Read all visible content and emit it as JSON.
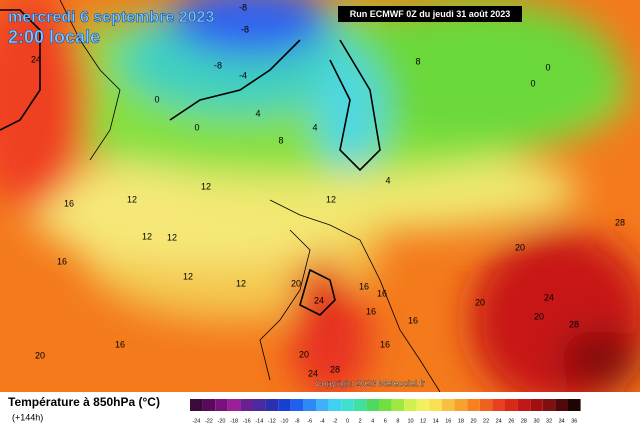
{
  "header": {
    "date": "mercredi 6 septembre 2023",
    "time": "2:00 locale",
    "run": "Run ECMWF 0Z du jeudi 31 août 2023"
  },
  "map": {
    "copyright": "Copyright 2023 Meteociel.fr",
    "contour_labels": [
      "-8",
      "-8",
      "-8",
      "-4",
      "0",
      "0",
      "4",
      "4",
      "8",
      "4",
      "8",
      "0",
      "0",
      "12",
      "12",
      "16",
      "12",
      "12",
      "12",
      "12",
      "12",
      "16",
      "16",
      "20",
      "20",
      "24",
      "16",
      "16",
      "16",
      "16",
      "20",
      "24",
      "20",
      "28",
      "28",
      "20",
      "24",
      "28",
      "16",
      "24",
      "20"
    ]
  },
  "legend": {
    "title": "Température à 850hPa (°C)",
    "lead": "(+144h)",
    "ticks": [
      -24,
      -22,
      -20,
      -18,
      -16,
      -14,
      -12,
      -10,
      -8,
      -6,
      -4,
      -2,
      0,
      2,
      4,
      6,
      8,
      10,
      12,
      14,
      16,
      18,
      20,
      22,
      24,
      26,
      28,
      30,
      32,
      34,
      36
    ]
  }
}
